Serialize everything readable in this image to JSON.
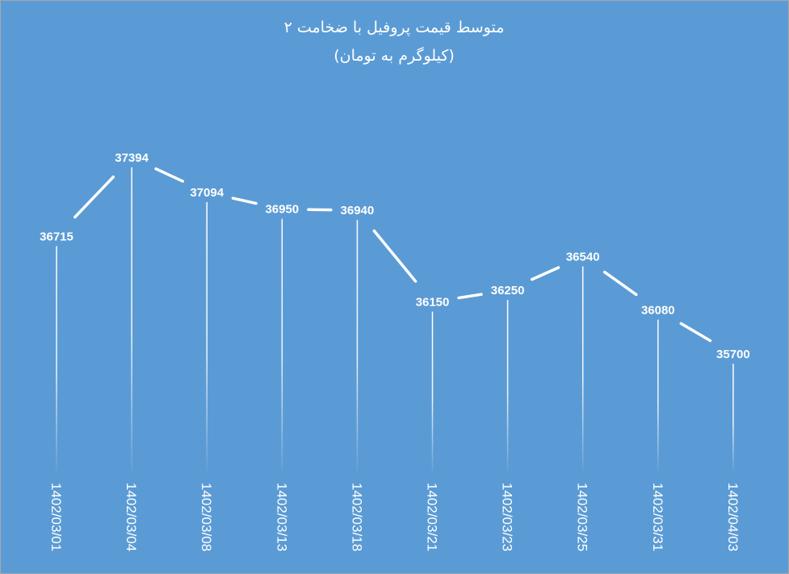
{
  "chart_data": {
    "type": "line",
    "title": "متوسط قیمت پروفیل با ضخامت ۲",
    "subtitle": "(کیلوگرم به تومان)",
    "categories": [
      "1402/03/01",
      "1402/03/04",
      "1402/03/08",
      "1402/03/13",
      "1402/03/18",
      "1402/03/21",
      "1402/03/23",
      "1402/03/25",
      "1402/03/31",
      "1402/04/03"
    ],
    "values": [
      36715,
      37394,
      37094,
      36950,
      36940,
      36150,
      36250,
      36540,
      36080,
      35700
    ],
    "data_labels": [
      "36715",
      "37394",
      "37094",
      "36950",
      "36940",
      "36150",
      "36250",
      "36540",
      "36080",
      "35700"
    ],
    "xlabel": "",
    "ylabel": "",
    "grid": false,
    "legend": "none",
    "drop_lines": true,
    "colors": {
      "background": "#5b9bd5",
      "line": "#ffffff",
      "text": "#ffffff"
    }
  }
}
